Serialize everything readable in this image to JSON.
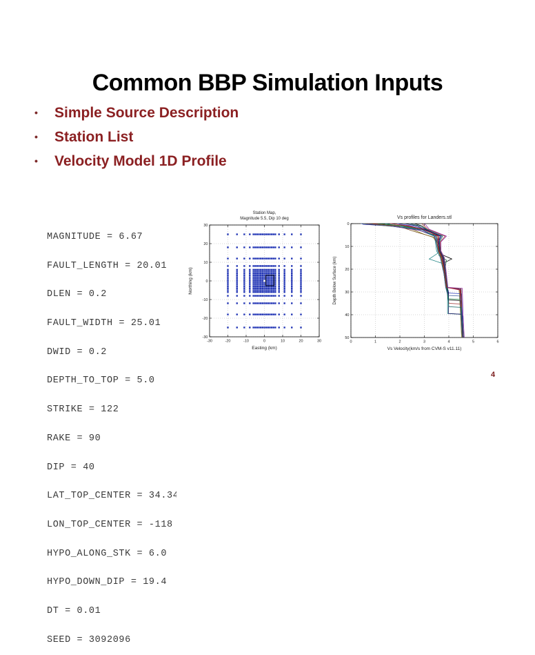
{
  "slide": {
    "title": "Common BBP Simulation Inputs",
    "bullets": [
      "Simple Source Description",
      "Station List",
      "Velocity Model 1D Profile"
    ],
    "page_number": "4",
    "colors": {
      "title": "#000000",
      "bullet_text": "#8b2022",
      "code_text": "#3a3a3a",
      "page_number": "#7b1c1c"
    }
  },
  "source_params": {
    "lines": [
      "MAGNITUDE = 6.67",
      "FAULT_LENGTH = 20.01",
      "DLEN = 0.2",
      "FAULT_WIDTH = 25.01",
      "DWID = 0.2",
      "DEPTH_TO_TOP = 5.0",
      "STRIKE = 122",
      "RAKE = 90",
      "DIP = 40",
      "LAT_TOP_CENTER = 34.34",
      "LON_TOP_CENTER = -118",
      "HYPO_ALONG_STK = 6.0",
      "HYPO_DOWN_DIP = 19.4",
      "DT = 0.01",
      "SEED = 3092096"
    ]
  },
  "chart_data": [
    {
      "type": "scatter",
      "name": "station-map",
      "title_lines": [
        "Station Map,",
        "Magnitude 5.5, Dip 10 deg"
      ],
      "xlabel": "Easting (km)",
      "ylabel": "Northing (km)",
      "xlim": [
        -30,
        30
      ],
      "ylim": [
        -30,
        30
      ],
      "xticks": [
        -30,
        -20,
        -10,
        0,
        10,
        20,
        30
      ],
      "yticks": [
        -30,
        -20,
        -10,
        0,
        10,
        20,
        30
      ],
      "grid": true,
      "marker_color": "#2235b5",
      "station_rings": {
        "pattern": "nested-square-rings",
        "half_widths_x": [
          1,
          2,
          3,
          4,
          5,
          6,
          8,
          11,
          15,
          20
        ],
        "half_heights_y": [
          1,
          2,
          3,
          4,
          5,
          6,
          8,
          12,
          18,
          25
        ]
      },
      "fault_box": {
        "x0": 0.8,
        "y0": -2.6,
        "x1": 5.2,
        "y1": 3.0,
        "color": "#000000"
      }
    },
    {
      "type": "line",
      "name": "vs-profiles",
      "title": "Vs profiles for Landers.stl",
      "xlabel": "Vs Velocity(km/s from CVM-S v11.11)",
      "ylabel": "Depth Below Surface (km)",
      "xlim": [
        0,
        6
      ],
      "depth_lim": [
        0,
        50
      ],
      "xticks": [
        0,
        1,
        2,
        3,
        4,
        5,
        6
      ],
      "yticks": [
        0,
        10,
        20,
        30,
        40,
        50
      ],
      "grid": true,
      "series": [
        {
          "name": "profile-01",
          "color": "#1c1c8f",
          "points": [
            [
              0.45,
              0
            ],
            [
              0.5,
              0.3
            ],
            [
              1.8,
              1.2
            ],
            [
              2.9,
              2.5
            ],
            [
              3.3,
              4
            ],
            [
              3.45,
              5.5
            ],
            [
              3.5,
              8
            ],
            [
              3.58,
              12
            ],
            [
              3.68,
              15
            ],
            [
              3.75,
              17
            ],
            [
              3.82,
              22
            ],
            [
              3.9,
              28
            ],
            [
              4.48,
              28.6
            ],
            [
              4.5,
              40
            ],
            [
              4.57,
              40.5
            ],
            [
              4.57,
              50
            ]
          ]
        },
        {
          "name": "profile-02",
          "color": "#8c1a1a",
          "points": [
            [
              0.9,
              0
            ],
            [
              2.2,
              1
            ],
            [
              3.0,
              2.5
            ],
            [
              3.55,
              5.5
            ],
            [
              3.55,
              8
            ],
            [
              3.62,
              12
            ],
            [
              3.75,
              15
            ],
            [
              3.85,
              22
            ],
            [
              3.92,
              28
            ],
            [
              4.45,
              29
            ],
            [
              4.5,
              40
            ],
            [
              4.55,
              40.5
            ],
            [
              4.55,
              50
            ]
          ]
        },
        {
          "name": "profile-03",
          "color": "#1a8080",
          "points": [
            [
              1.4,
              0
            ],
            [
              2.0,
              1
            ],
            [
              2.7,
              2.5
            ],
            [
              3.4,
              5.5
            ],
            [
              3.45,
              8
            ],
            [
              3.5,
              12
            ],
            [
              3.55,
              13
            ],
            [
              3.2,
              15.5
            ],
            [
              3.75,
              17.5
            ],
            [
              3.8,
              22
            ],
            [
              3.88,
              28
            ],
            [
              3.95,
              30
            ],
            [
              3.95,
              39.5
            ],
            [
              4.5,
              39.8
            ],
            [
              4.55,
              50
            ]
          ]
        },
        {
          "name": "profile-04",
          "color": "#000000",
          "points": [
            [
              2.6,
              0
            ],
            [
              2.9,
              1
            ],
            [
              3.1,
              2.5
            ],
            [
              3.6,
              5.5
            ],
            [
              3.6,
              8
            ],
            [
              3.65,
              12
            ],
            [
              3.7,
              13.5
            ],
            [
              4.12,
              15.5
            ],
            [
              3.75,
              17.5
            ],
            [
              3.85,
              22
            ],
            [
              3.9,
              28
            ],
            [
              3.98,
              30.5
            ],
            [
              3.98,
              33.5
            ],
            [
              4.5,
              33.8
            ],
            [
              4.52,
              40
            ],
            [
              4.55,
              50
            ]
          ]
        },
        {
          "name": "profile-05",
          "color": "#80801a",
          "points": [
            [
              0.5,
              0
            ],
            [
              1.0,
              0.5
            ],
            [
              2.4,
              2
            ],
            [
              2.95,
              4.5
            ],
            [
              3.35,
              6
            ],
            [
              3.5,
              8
            ],
            [
              3.58,
              12
            ],
            [
              3.68,
              15
            ],
            [
              3.8,
              22
            ],
            [
              3.88,
              28
            ],
            [
              4.42,
              28.8
            ],
            [
              4.48,
              40
            ],
            [
              4.52,
              50
            ]
          ]
        },
        {
          "name": "profile-06",
          "color": "#6a1a8f",
          "points": [
            [
              0.7,
              0
            ],
            [
              1.6,
              1
            ],
            [
              2.8,
              3
            ],
            [
              3.5,
              5.5
            ],
            [
              3.55,
              8
            ],
            [
              3.6,
              12
            ],
            [
              3.72,
              15
            ],
            [
              3.84,
              22
            ],
            [
              3.9,
              28
            ],
            [
              4.5,
              29
            ],
            [
              4.55,
              40
            ],
            [
              4.6,
              50
            ]
          ]
        },
        {
          "name": "profile-07",
          "color": "#2a3ab8",
          "points": [
            [
              1.9,
              0
            ],
            [
              2.5,
              1
            ],
            [
              3.05,
              2.5
            ],
            [
              3.65,
              5.5
            ],
            [
              3.6,
              8
            ],
            [
              3.63,
              12
            ],
            [
              3.78,
              15
            ],
            [
              3.86,
              22
            ],
            [
              3.94,
              28
            ],
            [
              4.0,
              30.5
            ],
            [
              4.52,
              30.8
            ],
            [
              4.55,
              40
            ],
            [
              4.6,
              50
            ]
          ]
        },
        {
          "name": "profile-08",
          "color": "#a03030",
          "points": [
            [
              2.9,
              0
            ],
            [
              3.0,
              1
            ],
            [
              3.15,
              2.5
            ],
            [
              3.85,
              5.5
            ],
            [
              3.65,
              8
            ],
            [
              3.66,
              12
            ],
            [
              3.8,
              15
            ],
            [
              3.88,
              22
            ],
            [
              3.95,
              28
            ],
            [
              4.0,
              35
            ],
            [
              4.5,
              35.3
            ],
            [
              4.52,
              40
            ],
            [
              4.58,
              50
            ]
          ]
        },
        {
          "name": "profile-09",
          "color": "#1a8040",
          "points": [
            [
              1.1,
              0
            ],
            [
              2.1,
              1
            ],
            [
              2.85,
              2.5
            ],
            [
              3.5,
              5.5
            ],
            [
              3.52,
              8
            ],
            [
              3.56,
              12
            ],
            [
              3.6,
              14
            ],
            [
              3.9,
              16
            ],
            [
              3.82,
              22
            ],
            [
              3.9,
              28
            ],
            [
              3.97,
              33
            ],
            [
              4.47,
              33.3
            ],
            [
              4.5,
              40
            ],
            [
              4.55,
              50
            ]
          ]
        },
        {
          "name": "profile-10",
          "color": "#7a4a1a",
          "points": [
            [
              0.6,
              0
            ],
            [
              1.9,
              1
            ],
            [
              2.6,
              3.5
            ],
            [
              3.4,
              6
            ],
            [
              3.5,
              8
            ],
            [
              3.6,
              12
            ],
            [
              3.7,
              15
            ],
            [
              3.83,
              22
            ],
            [
              3.9,
              28
            ],
            [
              4.5,
              28.6
            ],
            [
              4.53,
              40
            ],
            [
              4.6,
              50
            ]
          ]
        },
        {
          "name": "profile-11",
          "color": "#14145f",
          "points": [
            [
              2.2,
              0
            ],
            [
              2.7,
              1
            ],
            [
              3.0,
              2.5
            ],
            [
              3.7,
              5.5
            ],
            [
              3.58,
              8
            ],
            [
              3.62,
              12
            ],
            [
              3.76,
              15
            ],
            [
              3.85,
              22
            ],
            [
              3.93,
              28
            ],
            [
              3.99,
              30.5
            ],
            [
              3.99,
              39.5
            ],
            [
              4.52,
              39.8
            ],
            [
              4.57,
              50
            ]
          ]
        },
        {
          "name": "profile-12",
          "color": "#b41a32",
          "points": [
            [
              1.6,
              0
            ],
            [
              2.35,
              1
            ],
            [
              2.95,
              2.5
            ],
            [
              3.6,
              5.5
            ],
            [
              3.56,
              8
            ],
            [
              3.6,
              12
            ],
            [
              3.74,
              15
            ],
            [
              3.84,
              22
            ],
            [
              3.92,
              28
            ],
            [
              4.47,
              29.2
            ],
            [
              4.5,
              40
            ],
            [
              4.56,
              50
            ]
          ]
        },
        {
          "name": "profile-13",
          "color": "#8f2aa0",
          "points": [
            [
              3.0,
              0
            ],
            [
              3.05,
              0.5
            ],
            [
              3.2,
              2.5
            ],
            [
              3.9,
              5.5
            ],
            [
              3.68,
              8
            ],
            [
              3.68,
              12
            ],
            [
              3.82,
              15
            ],
            [
              3.9,
              22
            ],
            [
              3.96,
              28
            ],
            [
              4.55,
              28.4
            ],
            [
              4.58,
              40
            ],
            [
              4.63,
              50
            ]
          ]
        },
        {
          "name": "profile-14",
          "color": "#3a5a9a",
          "points": [
            [
              0.4,
              0
            ],
            [
              1.4,
              0.8
            ],
            [
              2.9,
              2.8
            ],
            [
              3.42,
              5.5
            ],
            [
              3.48,
              8
            ],
            [
              3.55,
              12
            ],
            [
              3.65,
              15
            ],
            [
              3.8,
              22
            ],
            [
              3.87,
              28
            ],
            [
              3.96,
              31.5
            ],
            [
              4.45,
              31.8
            ],
            [
              4.5,
              40
            ],
            [
              4.55,
              50
            ]
          ]
        },
        {
          "name": "profile-15",
          "color": "#0f5f5f",
          "points": [
            [
              2.4,
              0
            ],
            [
              2.8,
              1
            ],
            [
              3.08,
              2.5
            ],
            [
              3.75,
              5.5
            ],
            [
              3.62,
              8
            ],
            [
              3.64,
              12
            ],
            [
              3.79,
              15
            ],
            [
              3.87,
              22
            ],
            [
              3.94,
              28
            ],
            [
              4.0,
              36.5
            ],
            [
              4.5,
              36.8
            ],
            [
              4.53,
              40
            ],
            [
              4.6,
              50
            ]
          ]
        }
      ]
    }
  ]
}
